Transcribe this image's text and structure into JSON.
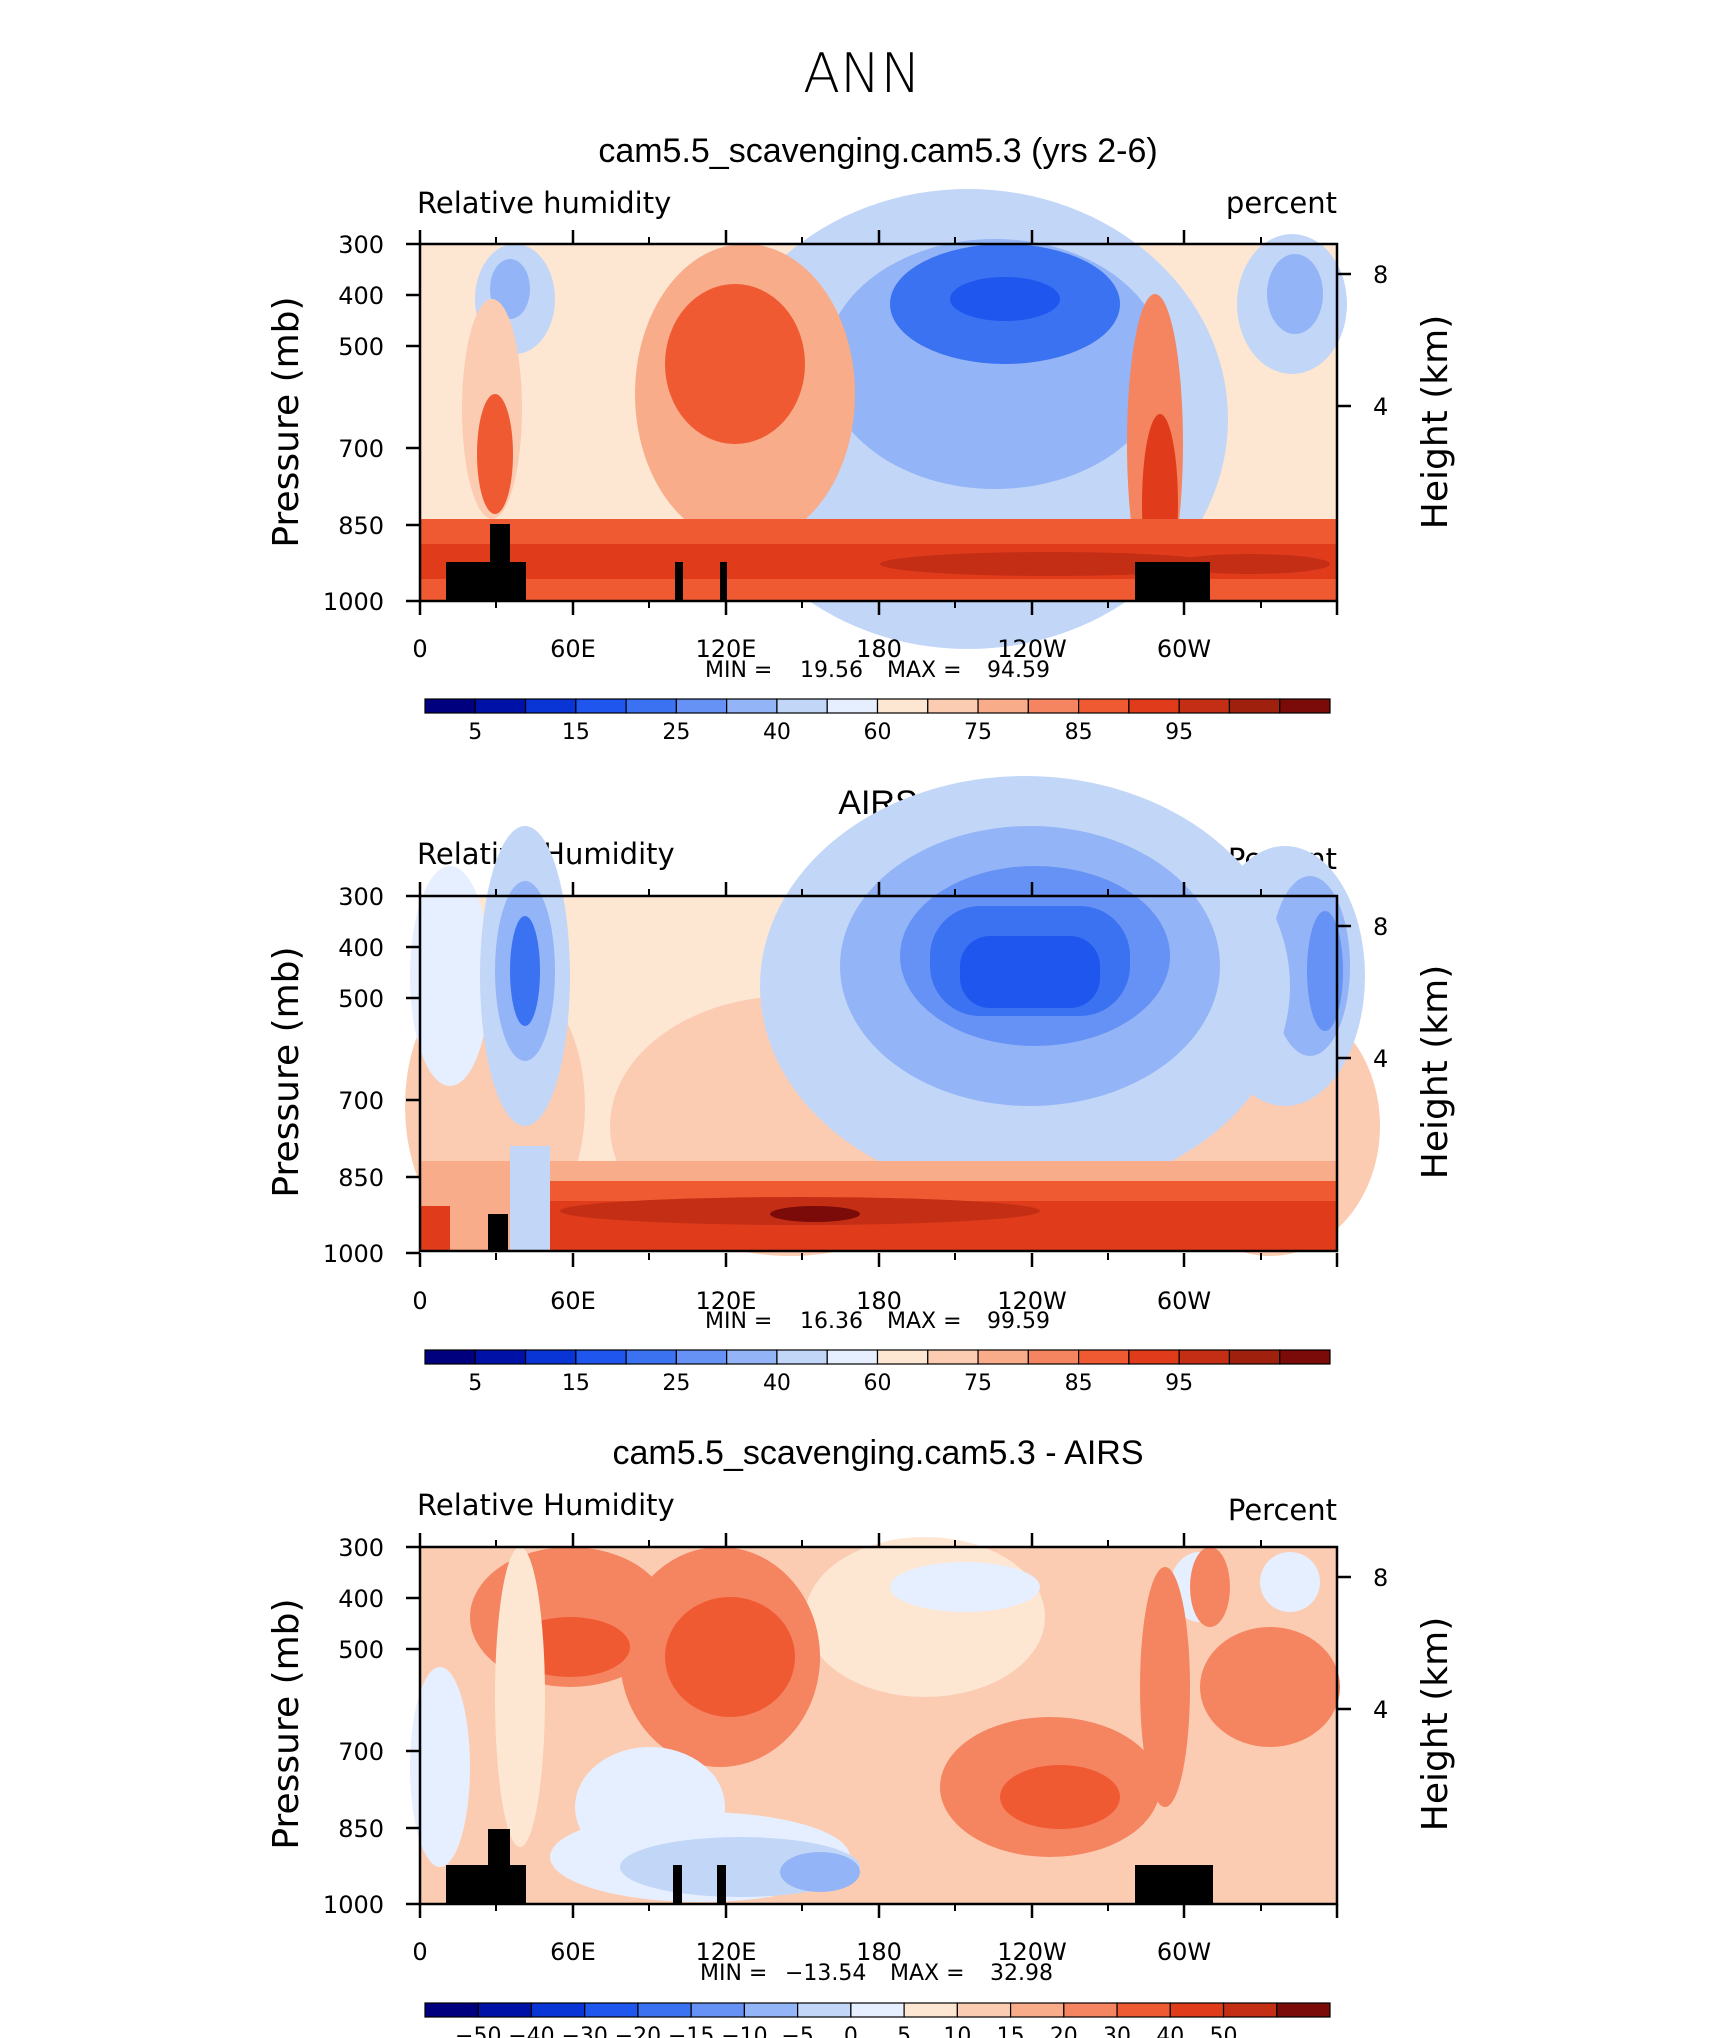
{
  "figure_title": "ANN",
  "chart_data": [
    {
      "type": "heatmap",
      "title": "cam5.5_scavenging.cam5.3 (yrs 2-6)",
      "left_label": "Relative  humidity",
      "right_label": "percent",
      "ylabel": "Pressure  (mb)",
      "ylabel_right": "Height  (km)",
      "x_ticks": [
        "0",
        "60E",
        "120E",
        "180",
        "120W",
        "60W"
      ],
      "y_ticks": [
        "300",
        "400",
        "500",
        "700",
        "850",
        "1000"
      ],
      "height_ticks": [
        "8",
        "4"
      ],
      "stats": {
        "min_label": "MIN =",
        "min": "19.56",
        "max_label": "MAX =",
        "max": "94.59"
      },
      "colorbar_labels": [
        "5",
        "15",
        "25",
        "40",
        "60",
        "75",
        "85",
        "95"
      ],
      "colors": [
        "#00007f",
        "#0011a8",
        "#0a35d6",
        "#1e56ee",
        "#3b72f2",
        "#6592f4",
        "#93b4f6",
        "#c2d6f8",
        "#e6efff",
        "#fde7d3",
        "#fbccb1",
        "#f8ac89",
        "#f58460",
        "#f05a32",
        "#e03c1c",
        "#c42e14",
        "#a0200e",
        "#7a0b08"
      ],
      "x_range": [
        0,
        360
      ],
      "ylim": [
        1000,
        300
      ],
      "y_scale": "log"
    },
    {
      "type": "heatmap",
      "title": "AIRS",
      "left_label": "Relative  Humidity",
      "right_label": "Percent",
      "ylabel": "Pressure  (mb)",
      "ylabel_right": "Height  (km)",
      "x_ticks": [
        "0",
        "60E",
        "120E",
        "180",
        "120W",
        "60W"
      ],
      "y_ticks": [
        "300",
        "400",
        "500",
        "700",
        "850",
        "1000"
      ],
      "height_ticks": [
        "8",
        "4"
      ],
      "stats": {
        "min_label": "MIN =",
        "min": "16.36",
        "max_label": "MAX =",
        "max": "99.59"
      },
      "colorbar_labels": [
        "5",
        "15",
        "25",
        "40",
        "60",
        "75",
        "85",
        "95"
      ],
      "colors": [
        "#00007f",
        "#0011a8",
        "#0a35d6",
        "#1e56ee",
        "#3b72f2",
        "#6592f4",
        "#93b4f6",
        "#c2d6f8",
        "#e6efff",
        "#fde7d3",
        "#fbccb1",
        "#f8ac89",
        "#f58460",
        "#f05a32",
        "#e03c1c",
        "#c42e14",
        "#a0200e",
        "#7a0b08"
      ],
      "x_range": [
        0,
        360
      ],
      "ylim": [
        1000,
        300
      ],
      "y_scale": "log"
    },
    {
      "type": "heatmap",
      "title": "cam5.5_scavenging.cam5.3 - AIRS",
      "left_label": "Relative  Humidity",
      "right_label": "Percent",
      "ylabel": "Pressure  (mb)",
      "ylabel_right": "Height  (km)",
      "x_ticks": [
        "0",
        "60E",
        "120E",
        "180",
        "120W",
        "60W"
      ],
      "y_ticks": [
        "300",
        "400",
        "500",
        "700",
        "850",
        "1000"
      ],
      "height_ticks": [
        "8",
        "4"
      ],
      "stats": {
        "min_label": "MIN =",
        "min": "−13.54",
        "max_label": "MAX =",
        "max": "32.98"
      },
      "colorbar_labels": [
        "−50",
        "−40",
        "−30",
        "−20",
        "−15",
        "−10",
        "−5",
        "0",
        "5",
        "10",
        "15",
        "20",
        "30",
        "40",
        "50"
      ],
      "colors": [
        "#00007f",
        "#0011a8",
        "#0a35d6",
        "#1e56ee",
        "#3b72f2",
        "#6592f4",
        "#93b4f6",
        "#c2d6f8",
        "#e6efff",
        "#fde7d3",
        "#fbccb1",
        "#f8ac89",
        "#f58460",
        "#f05a32",
        "#e03c1c",
        "#c42e14",
        "#7a0b08"
      ],
      "x_range": [
        0,
        360
      ],
      "ylim": [
        1000,
        300
      ],
      "y_scale": "log"
    }
  ]
}
